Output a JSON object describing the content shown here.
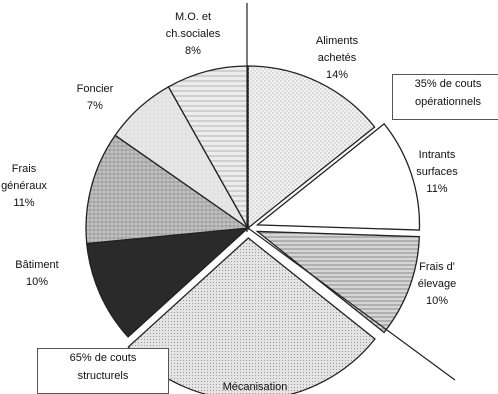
{
  "chart_data": {
    "type": "pie",
    "slices": [
      {
        "label": [
          "Aliments",
          "achetés",
          "14%"
        ],
        "value": 14,
        "exploded": false
      },
      {
        "label": [
          "Intrants",
          "surfaces",
          "11%"
        ],
        "value": 11,
        "exploded": true
      },
      {
        "label": [
          "Frais d'",
          "élevage",
          "10%"
        ],
        "value": 10,
        "exploded": true
      },
      {
        "label": [
          "Mécanisation"
        ],
        "value": 27,
        "exploded": true
      },
      {
        "label": [
          "Bâtiment",
          "10%"
        ],
        "value": 10,
        "exploded": false
      },
      {
        "label": [
          "Frais",
          "généraux",
          "11%"
        ],
        "value": 11,
        "exploded": false
      },
      {
        "label": [
          "Foncier",
          "7%"
        ],
        "value": 7,
        "exploded": false
      },
      {
        "label": [
          "M.O. et",
          "ch.sociales",
          "8%"
        ],
        "value": 8,
        "exploded": false
      }
    ],
    "annotations": [
      {
        "id": "operational",
        "lines": [
          "35% de couts",
          "opérationnels"
        ]
      },
      {
        "id": "structural",
        "lines": [
          "65% de couts",
          "structurels"
        ]
      }
    ],
    "fill_styles": [
      "dots-light",
      "white",
      "hlines",
      "dots-grid",
      "dark",
      "crosshatch",
      "light-gray",
      "hlines-light"
    ]
  }
}
